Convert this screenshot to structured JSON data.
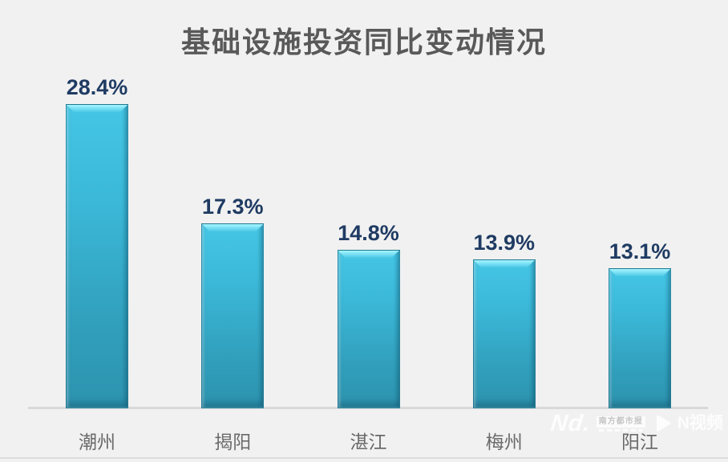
{
  "title": "基础设施投资同比变动情况",
  "chart_data": {
    "type": "bar",
    "title": "基础设施投资同比变动情况",
    "categories": [
      "潮州",
      "揭阳",
      "湛江",
      "梅州",
      "阳江"
    ],
    "values": [
      28.4,
      17.3,
      14.8,
      13.9,
      13.1
    ],
    "value_labels": [
      "28.4%",
      "17.3%",
      "14.8%",
      "13.9%",
      "13.1%"
    ],
    "unit": "%",
    "xlabel": "",
    "ylabel": "",
    "ylim": [
      0,
      30
    ],
    "grid": false,
    "legend": "none",
    "colors": {
      "background": "#f1f1f1",
      "title": "#595959",
      "value_label": "#1f3b63",
      "category_label": "#6a6a6a",
      "axis_line": "#d9d9d9",
      "bar_gradient_top": "#45c6e5",
      "bar_gradient_bottom": "#2d93ae",
      "bar_highlight": "#9ef3ff"
    }
  },
  "watermark": {
    "brand_script": "Nd.",
    "newspaper_name": "南方都市报",
    "video_brand": "N视频"
  }
}
